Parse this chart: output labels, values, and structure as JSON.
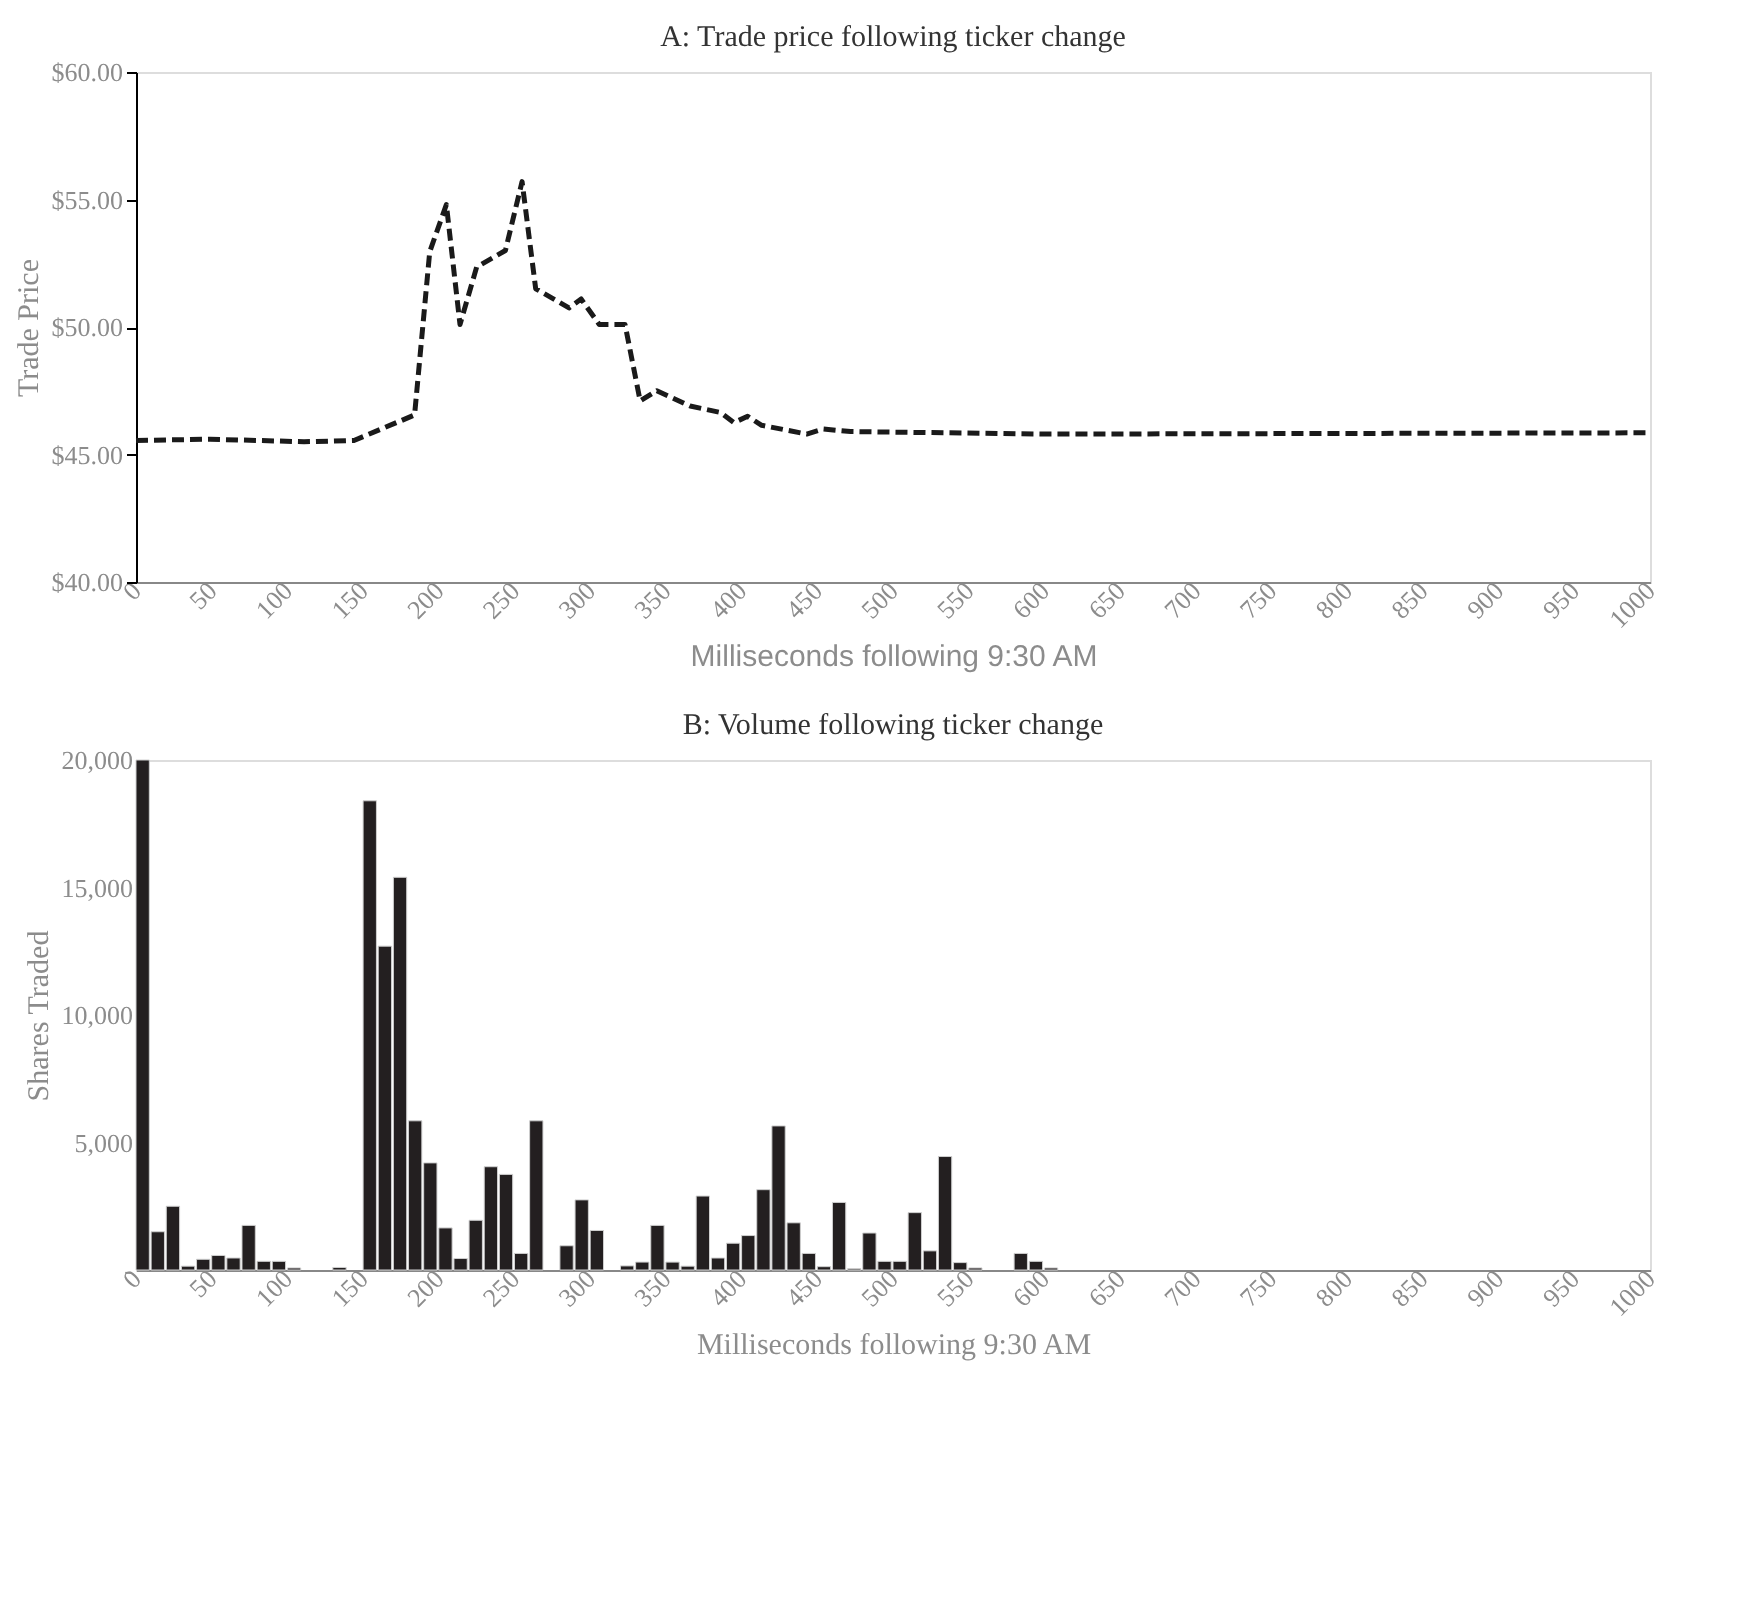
{
  "chart_data": [
    {
      "type": "line",
      "title": "A: Trade price following ticker change",
      "xlabel": "Milliseconds following 9:30 AM",
      "ylabel": "Trade Price",
      "line_style": "dashed",
      "marker": "none",
      "grid": false,
      "xlim": [
        0,
        1000
      ],
      "xticks": [
        0,
        50,
        100,
        150,
        200,
        250,
        300,
        350,
        400,
        450,
        500,
        550,
        600,
        650,
        700,
        750,
        800,
        850,
        900,
        950,
        1000
      ],
      "ylim": [
        40,
        60
      ],
      "yticks": [
        {
          "value": 40,
          "label": "$40.00"
        },
        {
          "value": 45,
          "label": "$45.00"
        },
        {
          "value": 50,
          "label": "$50.00"
        },
        {
          "value": 55,
          "label": "$55.00"
        },
        {
          "value": 60,
          "label": "$60.00"
        }
      ],
      "series": [
        {
          "color": "#1a1a1a",
          "x": [
            0,
            49,
            111,
            144,
            184,
            194,
            205,
            214,
            225,
            244,
            255,
            264,
            286,
            294,
            306,
            323,
            333,
            344,
            366,
            386,
            395,
            404,
            413,
            443,
            454,
            472,
            600,
            1000
          ],
          "values": [
            45.55,
            45.6,
            45.5,
            45.55,
            46.55,
            52.95,
            54.8,
            50.1,
            52.35,
            53.0,
            55.7,
            51.5,
            50.75,
            51.1,
            50.1,
            50.1,
            47.1,
            47.5,
            46.9,
            46.65,
            46.25,
            46.5,
            46.15,
            45.8,
            46.0,
            45.9,
            45.8,
            45.85
          ]
        }
      ]
    },
    {
      "type": "bar",
      "title": "B: Volume following ticker change",
      "xlabel": "Milliseconds following 9:30 AM",
      "ylabel": "Shares Traded",
      "grid": false,
      "xlim": [
        0,
        1000
      ],
      "xticks": [
        0,
        50,
        100,
        150,
        200,
        250,
        300,
        350,
        400,
        450,
        500,
        550,
        600,
        650,
        700,
        750,
        800,
        850,
        900,
        950,
        1000
      ],
      "ylim": [
        0,
        20000
      ],
      "yticks": [
        {
          "value": 0,
          "label": "-"
        },
        {
          "value": 5000,
          "label": "5,000"
        },
        {
          "value": 10000,
          "label": "10,000"
        },
        {
          "value": 15000,
          "label": "15,000"
        },
        {
          "value": 20000,
          "label": "20,000"
        }
      ],
      "series": [
        {
          "color": "#231f20",
          "x": [
            0,
            10,
            20,
            30,
            40,
            50,
            60,
            70,
            80,
            90,
            100,
            130,
            150,
            160,
            170,
            180,
            190,
            200,
            210,
            220,
            230,
            240,
            250,
            260,
            280,
            290,
            300,
            320,
            330,
            340,
            350,
            360,
            370,
            380,
            390,
            400,
            410,
            420,
            430,
            440,
            450,
            460,
            470,
            480,
            490,
            500,
            510,
            520,
            530,
            540,
            550,
            580,
            590,
            600
          ],
          "values": [
            20000,
            1500,
            2500,
            150,
            420,
            570,
            470,
            1750,
            340,
            340,
            80,
            100,
            18400,
            12700,
            15400,
            5850,
            4200,
            1650,
            450,
            1950,
            4050,
            3750,
            650,
            5850,
            950,
            2750,
            1550,
            160,
            310,
            1750,
            310,
            150,
            2900,
            470,
            1050,
            1350,
            3150,
            5650,
            1850,
            650,
            130,
            2650,
            50,
            1450,
            340,
            340,
            2250,
            750,
            4450,
            290,
            80,
            650,
            340,
            80
          ]
        }
      ]
    }
  ]
}
